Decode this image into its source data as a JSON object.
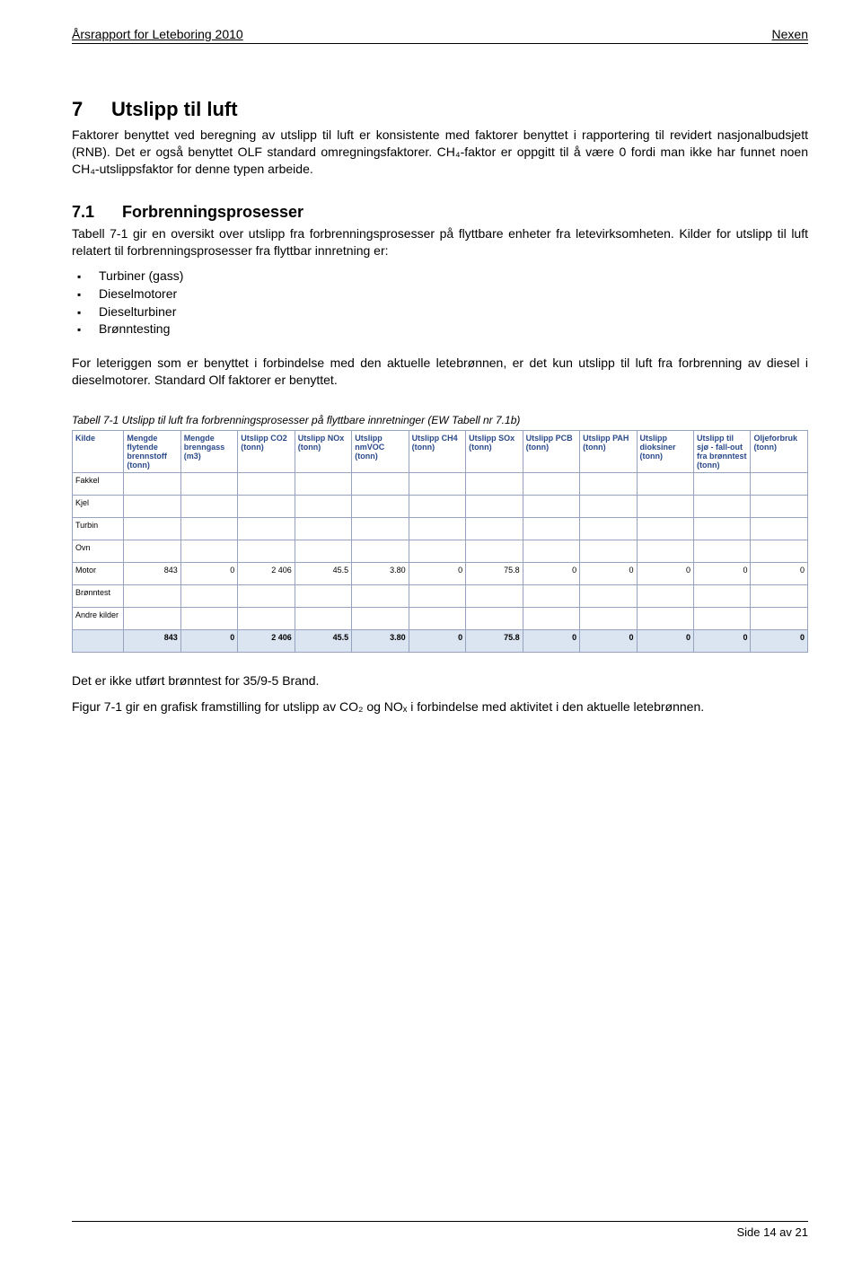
{
  "header": {
    "left": "Årsrapport for Leteboring 2010",
    "right": "Nexen"
  },
  "section": {
    "number": "7",
    "title": "Utslipp til luft",
    "para1": "Faktorer benyttet ved beregning av utslipp til luft er konsistente med faktorer benyttet i rapportering til revidert nasjonalbudsjett (RNB). Det er også benyttet OLF standard omregningsfaktorer. CH₄-faktor er oppgitt til å være 0 fordi man ikke har funnet noen CH₄-utslippsfaktor for denne typen arbeide."
  },
  "subsection": {
    "number": "7.1",
    "title": "Forbrenningsprosesser",
    "para1": "Tabell 7-1 gir en oversikt over utslipp fra forbrenningsprosesser på flyttbare enheter fra letevirksomheten. Kilder for utslipp til luft relatert til forbrenningsprosesser fra flyttbar innretning er:",
    "bullets": [
      "Turbiner (gass)",
      "Dieselmotorer",
      "Dieselturbiner",
      "Brønntesting"
    ],
    "para2": "For leteriggen som er benyttet i forbindelse med den aktuelle letebrønnen, er det kun utslipp til luft fra forbrenning av diesel i dieselmotorer. Standard Olf faktorer er benyttet."
  },
  "table": {
    "caption": "Tabell 7-1   Utslipp til luft fra forbrenningsprosesser på flyttbare innretninger (EW Tabell nr 7.1b)",
    "headers": [
      "Kilde",
      "Mengde flytende brennstoff (tonn)",
      "Mengde brenngass (m3)",
      "Utslipp CO2 (tonn)",
      "Utslipp NOx (tonn)",
      "Utslipp nmVOC (tonn)",
      "Utslipp CH4 (tonn)",
      "Utslipp SOx (tonn)",
      "Utslipp PCB (tonn)",
      "Utslipp PAH (tonn)",
      "Utslipp dioksiner (tonn)",
      "Utslipp til sjø - fall-out fra brønntest (tonn)",
      "Oljeforbruk (tonn)"
    ],
    "rows": [
      {
        "label": "Fakkel",
        "cells": [
          "",
          "",
          "",
          "",
          "",
          "",
          "",
          "",
          "",
          "",
          "",
          ""
        ]
      },
      {
        "label": "Kjel",
        "cells": [
          "",
          "",
          "",
          "",
          "",
          "",
          "",
          "",
          "",
          "",
          "",
          ""
        ]
      },
      {
        "label": "Turbin",
        "cells": [
          "",
          "",
          "",
          "",
          "",
          "",
          "",
          "",
          "",
          "",
          "",
          ""
        ]
      },
      {
        "label": "Ovn",
        "cells": [
          "",
          "",
          "",
          "",
          "",
          "",
          "",
          "",
          "",
          "",
          "",
          ""
        ]
      },
      {
        "label": "Motor",
        "cells": [
          "843",
          "0",
          "2 406",
          "45.5",
          "3.80",
          "0",
          "75.8",
          "0",
          "0",
          "0",
          "0",
          "0"
        ]
      },
      {
        "label": "Brønntest",
        "cells": [
          "",
          "",
          "",
          "",
          "",
          "",
          "",
          "",
          "",
          "",
          "",
          ""
        ]
      },
      {
        "label": "Andre kilder",
        "cells": [
          "",
          "",
          "",
          "",
          "",
          "",
          "",
          "",
          "",
          "",
          "",
          ""
        ]
      }
    ],
    "total": {
      "label": "",
      "cells": [
        "843",
        "0",
        "2 406",
        "45.5",
        "3.80",
        "0",
        "75.8",
        "0",
        "0",
        "0",
        "0",
        "0"
      ]
    }
  },
  "after_table": {
    "para1": "Det er ikke utført brønntest for 35/9-5 Brand.",
    "para2": "Figur 7-1 gir en grafisk framstilling for utslipp av CO₂ og NOₓ i forbindelse med aktivitet i den aktuelle letebrønnen."
  },
  "footer": "Side 14 av 21"
}
